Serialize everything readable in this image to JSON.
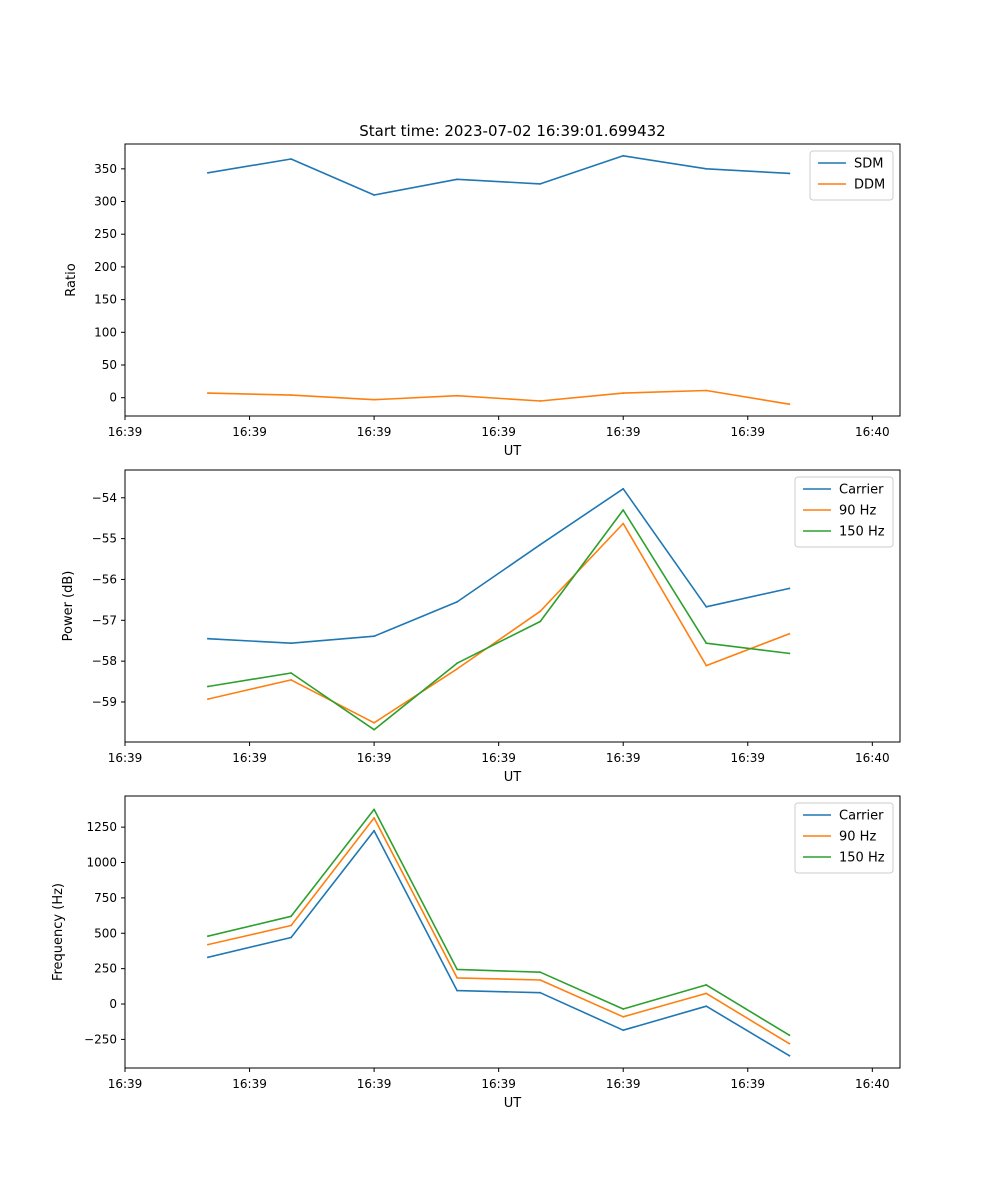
{
  "chart_data": [
    {
      "type": "line",
      "title": "Start time: 2023-07-02 16:39:01.699432",
      "xlabel": "UT",
      "ylabel": "Ratio",
      "legend": "top-right",
      "grid": false,
      "x": [
        0.6,
        1.2,
        1.8,
        2.4,
        3.0,
        3.6,
        4.2,
        4.8
      ],
      "xlim": [
        0.0,
        5.6
      ],
      "xticks": [
        0.0,
        0.9,
        1.8,
        2.7,
        3.6,
        4.5,
        5.4
      ],
      "xticklabels": [
        "16:39",
        "16:39",
        "16:39",
        "16:39",
        "16:39",
        "16:39",
        "16:40"
      ],
      "ylim": [
        -28,
        388
      ],
      "yticks": [
        0,
        50,
        100,
        150,
        200,
        250,
        300,
        350
      ],
      "yticklabels": [
        "0",
        "50",
        "100",
        "150",
        "200",
        "250",
        "300",
        "350"
      ],
      "series": [
        {
          "name": "SDM",
          "color": "#1f77b4",
          "values": [
            344,
            365,
            310,
            334,
            327,
            370,
            350,
            343
          ]
        },
        {
          "name": "DDM",
          "color": "#ff7f0e",
          "values": [
            7,
            4,
            -3,
            3,
            -5,
            7,
            11,
            -10
          ]
        }
      ]
    },
    {
      "type": "line",
      "title": "",
      "xlabel": "UT",
      "ylabel": "Power (dB)",
      "legend": "top-right",
      "grid": false,
      "x": [
        0.6,
        1.2,
        1.8,
        2.4,
        3.0,
        3.6,
        4.2,
        4.8
      ],
      "xlim": [
        0.0,
        5.6
      ],
      "xticks": [
        0.0,
        0.9,
        1.8,
        2.7,
        3.6,
        4.5,
        5.4
      ],
      "xticklabels": [
        "16:39",
        "16:39",
        "16:39",
        "16:39",
        "16:39",
        "16:39",
        "16:40"
      ],
      "ylim": [
        -59.98,
        -53.32
      ],
      "yticks": [
        -59,
        -58,
        -57,
        -56,
        -55,
        -54
      ],
      "yticklabels": [
        "−59",
        "−58",
        "−57",
        "−56",
        "−55",
        "−54"
      ],
      "series": [
        {
          "name": "Carrier",
          "color": "#1f77b4",
          "values": [
            -57.45,
            -57.56,
            -57.39,
            -56.55,
            -55.15,
            -53.78,
            -56.67,
            -56.22
          ]
        },
        {
          "name": "90 Hz",
          "color": "#ff7f0e",
          "values": [
            -58.93,
            -58.46,
            -59.51,
            -58.19,
            -56.78,
            -54.63,
            -58.11,
            -57.33
          ]
        },
        {
          "name": "150 Hz",
          "color": "#2ca02c",
          "values": [
            -58.62,
            -58.29,
            -59.68,
            -58.05,
            -57.03,
            -54.3,
            -57.56,
            -57.81
          ]
        }
      ]
    },
    {
      "type": "line",
      "title": "",
      "xlabel": "UT",
      "ylabel": "Frequency (Hz)",
      "legend": "top-right",
      "grid": false,
      "x": [
        0.6,
        1.2,
        1.8,
        2.4,
        3.0,
        3.6,
        4.2,
        4.8
      ],
      "xlim": [
        0.0,
        5.6
      ],
      "xticks": [
        0.0,
        0.9,
        1.8,
        2.7,
        3.6,
        4.5,
        5.4
      ],
      "xticklabels": [
        "16:39",
        "16:39",
        "16:39",
        "16:39",
        "16:39",
        "16:39",
        "16:40"
      ],
      "ylim": [
        -452,
        1470
      ],
      "yticks": [
        -250,
        0,
        250,
        500,
        750,
        1000,
        1250
      ],
      "yticklabels": [
        "−250",
        "0",
        "250",
        "500",
        "750",
        "1000",
        "1250"
      ],
      "series": [
        {
          "name": "Carrier",
          "color": "#1f77b4",
          "values": [
            330,
            470,
            1225,
            95,
            80,
            -185,
            -15,
            -365
          ]
        },
        {
          "name": "90 Hz",
          "color": "#ff7f0e",
          "values": [
            420,
            555,
            1315,
            185,
            170,
            -90,
            75,
            -280
          ]
        },
        {
          "name": "150 Hz",
          "color": "#2ca02c",
          "values": [
            480,
            620,
            1375,
            245,
            225,
            -35,
            135,
            -220
          ]
        }
      ]
    }
  ]
}
